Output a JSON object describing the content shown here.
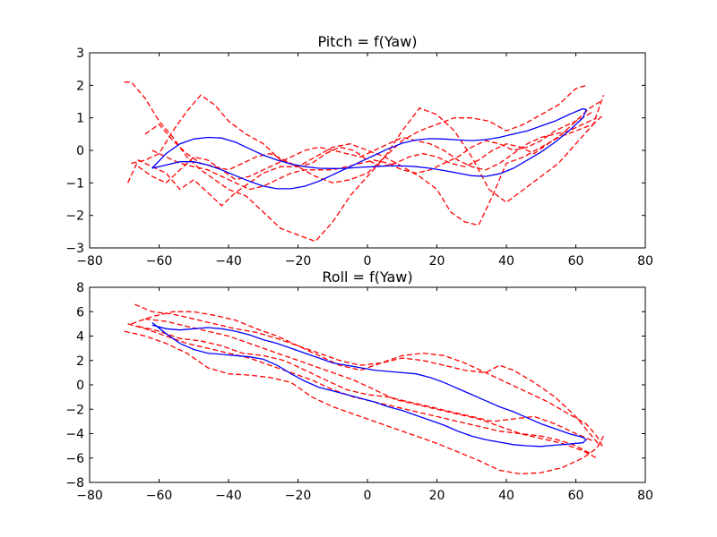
{
  "chart_data": [
    {
      "type": "line",
      "title": "Pitch = f(Yaw)",
      "xlabel": "",
      "ylabel": "",
      "xlim": [
        -80,
        80
      ],
      "ylim": [
        -3,
        3
      ],
      "xticks": [
        -80,
        -60,
        -40,
        -20,
        0,
        20,
        40,
        60,
        80
      ],
      "yticks": [
        3,
        2,
        1,
        0,
        -1,
        -2,
        -3
      ],
      "tick_labels_x": [
        "−80",
        "−60",
        "−40",
        "−20",
        "0",
        "20",
        "40",
        "60",
        "80"
      ],
      "tick_labels_y": [
        "3",
        "2",
        "1",
        "0",
        "−1",
        "−2",
        "−3"
      ],
      "grid": false,
      "colors": {
        "dashed": "#ff0000",
        "solid": "#0000ff"
      },
      "series": [
        {
          "style": "dashed",
          "color": "#ff0000",
          "x": [
            -70,
            -68,
            -64,
            -60,
            -56,
            -52,
            -48,
            -44,
            -40,
            -35,
            -30,
            -25,
            -20,
            -15,
            -10,
            -5,
            0,
            5,
            10,
            15,
            20,
            25,
            30,
            35,
            40,
            45,
            50,
            55,
            60,
            63
          ],
          "y": [
            2.1,
            2.1,
            1.6,
            0.9,
            0.4,
            -0.2,
            -0.6,
            -0.9,
            -1.2,
            -1.4,
            -1.9,
            -2.4,
            -2.6,
            -2.8,
            -2.2,
            -1.4,
            -0.8,
            -0.2,
            0.3,
            0.6,
            0.8,
            1.0,
            1.0,
            0.9,
            0.6,
            0.8,
            1.1,
            1.4,
            1.9,
            2.0
          ]
        },
        {
          "style": "dashed",
          "color": "#ff0000",
          "x": [
            -68,
            -64,
            -60,
            -56,
            -52,
            -48,
            -44,
            -40,
            -35,
            -30,
            -25,
            -20,
            -15,
            -10,
            -5,
            0,
            5,
            10,
            15,
            20,
            25,
            30,
            35,
            40,
            45,
            50,
            55,
            60,
            65,
            68
          ],
          "y": [
            -0.4,
            -0.3,
            -0.1,
            0.6,
            1.2,
            1.7,
            1.4,
            0.9,
            0.5,
            0.2,
            -0.3,
            -0.5,
            -0.8,
            -1.0,
            -0.9,
            -0.7,
            -0.2,
            0.6,
            1.3,
            1.1,
            0.6,
            -0.2,
            -1.2,
            -1.6,
            -1.2,
            -0.8,
            -0.4,
            0.2,
            0.8,
            1.7
          ]
        },
        {
          "style": "dashed",
          "color": "#ff0000",
          "x": [
            -69,
            -66,
            -62,
            -58,
            -54,
            -50,
            -46,
            -42,
            -38,
            -34,
            -30,
            -25,
            -20,
            -15,
            -10,
            -5,
            0,
            5,
            10,
            15,
            20,
            24,
            28,
            32,
            36,
            40,
            45,
            50,
            55,
            60,
            65,
            68
          ],
          "y": [
            -1.0,
            -0.3,
            -0.5,
            -0.7,
            -1.2,
            -0.9,
            -1.3,
            -1.7,
            -1.3,
            -1.0,
            -0.7,
            -0.5,
            -0.5,
            -0.2,
            0.1,
            0.2,
            0.0,
            -0.2,
            -0.5,
            -0.8,
            -1.2,
            -1.9,
            -2.2,
            -2.3,
            -1.4,
            -0.4,
            -0.2,
            0.1,
            0.4,
            0.6,
            0.8,
            1.1
          ]
        },
        {
          "style": "dashed",
          "color": "#ff0000",
          "x": [
            -66,
            -62,
            -58,
            -54,
            -50,
            -46,
            -42,
            -38,
            -34,
            -30,
            -26,
            -22,
            -18,
            -14,
            -10,
            -6,
            -2,
            2,
            6,
            10,
            14,
            18,
            22,
            26,
            30,
            34,
            38,
            42,
            46,
            50,
            54,
            58,
            62,
            66
          ],
          "y": [
            -0.5,
            -0.8,
            -1.0,
            -0.6,
            -0.2,
            -0.3,
            -0.6,
            -0.9,
            -0.8,
            -0.6,
            -0.4,
            -0.2,
            0.0,
            0.1,
            0.0,
            -0.1,
            -0.2,
            0.0,
            0.2,
            0.4,
            0.3,
            0.2,
            0.0,
            -0.3,
            -0.5,
            -0.6,
            -0.4,
            -0.1,
            0.2,
            0.4,
            0.5,
            0.6,
            0.8,
            1.0
          ]
        },
        {
          "style": "dashed",
          "color": "#ff0000",
          "x": [
            -64,
            -60,
            -56,
            -52,
            -48,
            -44,
            -40,
            -36,
            -32,
            -28,
            -24,
            -20,
            -16,
            -12,
            -8,
            -4,
            0,
            4,
            8,
            12,
            16,
            20,
            24,
            28,
            32,
            36,
            40,
            44,
            48,
            52,
            56,
            60,
            64,
            67
          ],
          "y": [
            0.5,
            0.8,
            0.3,
            -0.1,
            -0.4,
            -0.5,
            -0.6,
            -0.4,
            -0.2,
            -0.1,
            -0.3,
            -0.5,
            -0.4,
            -0.1,
            0.1,
            0.0,
            -0.3,
            -0.5,
            -0.4,
            -0.2,
            -0.1,
            -0.2,
            -0.4,
            -0.5,
            -0.3,
            0.0,
            0.2,
            0.1,
            -0.1,
            0.2,
            0.5,
            0.9,
            1.3,
            1.5
          ]
        },
        {
          "style": "dashed",
          "color": "#ff0000",
          "x": [
            -62,
            -58,
            -54,
            -50,
            -46,
            -42,
            -38,
            -34,
            -30,
            -26,
            -22,
            -18,
            -14,
            -10,
            -6,
            -2,
            2,
            6,
            10,
            14,
            18,
            22,
            26,
            30,
            34,
            38,
            42,
            46,
            50,
            54,
            58,
            62,
            65
          ],
          "y": [
            0.0,
            -0.2,
            -0.4,
            -0.5,
            -0.6,
            -0.8,
            -1.0,
            -1.2,
            -1.1,
            -0.9,
            -0.7,
            -0.6,
            -0.6,
            -0.6,
            -0.5,
            -0.4,
            -0.3,
            -0.4,
            -0.6,
            -0.7,
            -0.6,
            -0.4,
            -0.2,
            0.1,
            0.3,
            0.2,
            0.0,
            0.1,
            0.3,
            0.6,
            0.8,
            1.0,
            1.2
          ]
        },
        {
          "style": "solid",
          "color": "#0000ff",
          "x": [
            -62,
            -58,
            -54,
            -50,
            -46,
            -42,
            -38,
            -34,
            -30,
            -26,
            -22,
            -18,
            -14,
            -10,
            -6,
            -2,
            2,
            6,
            10,
            14,
            18,
            22,
            26,
            30,
            34,
            38,
            42,
            46,
            50,
            54,
            58,
            62,
            63,
            62,
            58,
            54,
            50,
            46,
            42,
            38,
            34,
            30,
            26,
            22,
            18,
            14,
            10,
            6,
            2,
            -2,
            -6,
            -10,
            -14,
            -18,
            -22,
            -26,
            -30,
            -34,
            -38,
            -42,
            -46,
            -50,
            -54,
            -58,
            -62
          ],
          "y": [
            -0.55,
            -0.1,
            0.2,
            0.35,
            0.4,
            0.38,
            0.25,
            0.05,
            -0.15,
            -0.3,
            -0.42,
            -0.5,
            -0.55,
            -0.56,
            -0.55,
            -0.52,
            -0.5,
            -0.48,
            -0.48,
            -0.5,
            -0.55,
            -0.62,
            -0.7,
            -0.78,
            -0.8,
            -0.72,
            -0.55,
            -0.3,
            -0.05,
            0.25,
            0.6,
            1.0,
            1.25,
            1.28,
            1.1,
            0.9,
            0.75,
            0.6,
            0.5,
            0.4,
            0.33,
            0.3,
            0.32,
            0.35,
            0.36,
            0.32,
            0.22,
            0.05,
            -0.15,
            -0.35,
            -0.55,
            -0.75,
            -0.95,
            -1.1,
            -1.18,
            -1.18,
            -1.1,
            -0.95,
            -0.78,
            -0.6,
            -0.45,
            -0.35,
            -0.35,
            -0.45,
            -0.55
          ]
        }
      ]
    },
    {
      "type": "line",
      "title": "Roll = f(Yaw)",
      "xlabel": "",
      "ylabel": "",
      "xlim": [
        -80,
        80
      ],
      "ylim": [
        -8,
        8
      ],
      "xticks": [
        -80,
        -60,
        -40,
        -20,
        0,
        20,
        40,
        60,
        80
      ],
      "yticks": [
        8,
        6,
        4,
        2,
        0,
        -2,
        -4,
        -6,
        -8
      ],
      "tick_labels_x": [
        "−80",
        "−60",
        "−40",
        "−20",
        "0",
        "20",
        "40",
        "60",
        "80"
      ],
      "tick_labels_y": [
        "8",
        "6",
        "4",
        "2",
        "0",
        "−2",
        "−4",
        "−6",
        "−8"
      ],
      "grid": false,
      "colors": {
        "dashed": "#ff0000",
        "solid": "#0000ff"
      },
      "series": [
        {
          "style": "dashed",
          "color": "#ff0000",
          "x": [
            -67,
            -62,
            -56,
            -50,
            -44,
            -38,
            -32,
            -26,
            -20,
            -14,
            -8,
            -2,
            4,
            10,
            16,
            22,
            28,
            34,
            40,
            46,
            52,
            58,
            63,
            66,
            68
          ],
          "y": [
            6.6,
            6.0,
            5.8,
            5.4,
            5.0,
            4.6,
            4.3,
            3.8,
            3.2,
            2.6,
            2.0,
            1.6,
            1.8,
            2.4,
            2.6,
            2.4,
            1.8,
            1.0,
            0.2,
            -0.6,
            -1.4,
            -2.4,
            -3.2,
            -4.2,
            -5.2
          ]
        },
        {
          "style": "dashed",
          "color": "#ff0000",
          "x": [
            -70,
            -64,
            -58,
            -52,
            -46,
            -40,
            -34,
            -28,
            -22,
            -16,
            -10,
            -4,
            2,
            8,
            14,
            20,
            26,
            32,
            38,
            44,
            50,
            56,
            62,
            66,
            68
          ],
          "y": [
            4.4,
            4.0,
            3.4,
            2.6,
            1.4,
            0.9,
            0.8,
            0.6,
            0.2,
            -1.0,
            -1.8,
            -2.4,
            -3.0,
            -3.6,
            -4.2,
            -4.8,
            -5.5,
            -6.2,
            -7.0,
            -7.3,
            -7.2,
            -6.8,
            -6.0,
            -5.2,
            -4.2
          ]
        },
        {
          "style": "dashed",
          "color": "#ff0000",
          "x": [
            -68,
            -62,
            -56,
            -50,
            -44,
            -38,
            -32,
            -26,
            -20,
            -14,
            -8,
            -2,
            4,
            10,
            16,
            22,
            28,
            34,
            38,
            42,
            48,
            54,
            60,
            64,
            67
          ],
          "y": [
            5.0,
            5.6,
            6.0,
            6.0,
            5.7,
            5.3,
            4.6,
            4.0,
            3.2,
            2.4,
            1.6,
            1.2,
            1.8,
            2.2,
            2.0,
            1.6,
            1.2,
            1.0,
            1.6,
            1.2,
            0.2,
            -1.0,
            -2.6,
            -4.0,
            -5.0
          ]
        },
        {
          "style": "dashed",
          "color": "#ff0000",
          "x": [
            -69,
            -64,
            -58,
            -52,
            -46,
            -40,
            -34,
            -28,
            -22,
            -16,
            -10,
            -4,
            2,
            8,
            14,
            20,
            26,
            32,
            38,
            44,
            50,
            56,
            60,
            64
          ],
          "y": [
            5.0,
            4.6,
            4.0,
            3.4,
            3.0,
            2.6,
            2.2,
            1.6,
            1.0,
            0.4,
            -0.4,
            -1.0,
            -1.4,
            -1.8,
            -2.2,
            -2.6,
            -3.0,
            -3.4,
            -3.8,
            -4.0,
            -4.2,
            -4.6,
            -5.0,
            -5.6
          ]
        },
        {
          "style": "dashed",
          "color": "#ff0000",
          "x": [
            -66,
            -60,
            -54,
            -48,
            -42,
            -36,
            -30,
            -24,
            -18,
            -12,
            -6,
            0,
            6,
            12,
            18,
            24,
            30,
            36,
            42,
            48,
            54,
            60,
            65
          ],
          "y": [
            4.8,
            4.4,
            3.8,
            3.6,
            3.2,
            2.6,
            2.4,
            2.0,
            1.2,
            0.4,
            -0.4,
            -0.8,
            -1.0,
            -1.4,
            -1.8,
            -2.2,
            -2.6,
            -3.0,
            -2.8,
            -2.6,
            -3.2,
            -4.0,
            -4.6
          ]
        },
        {
          "style": "dashed",
          "color": "#ff0000",
          "x": [
            -64,
            -58,
            -52,
            -46,
            -40,
            -34,
            -28,
            -22,
            -16,
            -10,
            -4,
            2,
            8,
            14,
            20,
            26,
            32,
            38,
            44,
            50,
            56,
            62,
            66
          ],
          "y": [
            5.4,
            5.2,
            4.8,
            4.4,
            4.0,
            3.4,
            2.8,
            2.2,
            1.6,
            1.0,
            0.4,
            -0.4,
            -1.2,
            -1.6,
            -2.0,
            -2.4,
            -2.8,
            -3.4,
            -4.0,
            -4.4,
            -4.8,
            -5.4,
            -6.0
          ]
        },
        {
          "style": "solid",
          "color": "#0000ff",
          "x": [
            -62,
            -58,
            -54,
            -50,
            -46,
            -42,
            -38,
            -34,
            -30,
            -26,
            -22,
            -18,
            -14,
            -10,
            -6,
            -2,
            2,
            6,
            10,
            14,
            18,
            22,
            26,
            30,
            34,
            38,
            42,
            46,
            50,
            54,
            58,
            62,
            63,
            62,
            58,
            54,
            50,
            46,
            42,
            38,
            34,
            30,
            26,
            22,
            18,
            14,
            10,
            6,
            2,
            -2,
            -6,
            -10,
            -14,
            -18,
            -22,
            -26,
            -30,
            -34,
            -38,
            -42,
            -46,
            -50,
            -54,
            -58,
            -62
          ],
          "y": [
            5.1,
            4.2,
            3.4,
            2.9,
            2.6,
            2.5,
            2.4,
            2.3,
            2.1,
            1.6,
            0.9,
            0.3,
            -0.2,
            -0.5,
            -0.8,
            -1.1,
            -1.4,
            -1.8,
            -2.1,
            -2.5,
            -2.9,
            -3.3,
            -3.8,
            -4.2,
            -4.5,
            -4.7,
            -4.9,
            -5.0,
            -5.05,
            -4.95,
            -4.85,
            -4.75,
            -4.5,
            -4.3,
            -4.0,
            -3.6,
            -3.2,
            -2.7,
            -2.2,
            -1.8,
            -1.3,
            -0.8,
            -0.3,
            0.2,
            0.6,
            0.9,
            1.0,
            1.1,
            1.2,
            1.4,
            1.6,
            1.8,
            2.2,
            2.6,
            3.0,
            3.4,
            3.7,
            4.1,
            4.4,
            4.6,
            4.7,
            4.6,
            4.5,
            4.6,
            4.9
          ]
        }
      ]
    }
  ]
}
